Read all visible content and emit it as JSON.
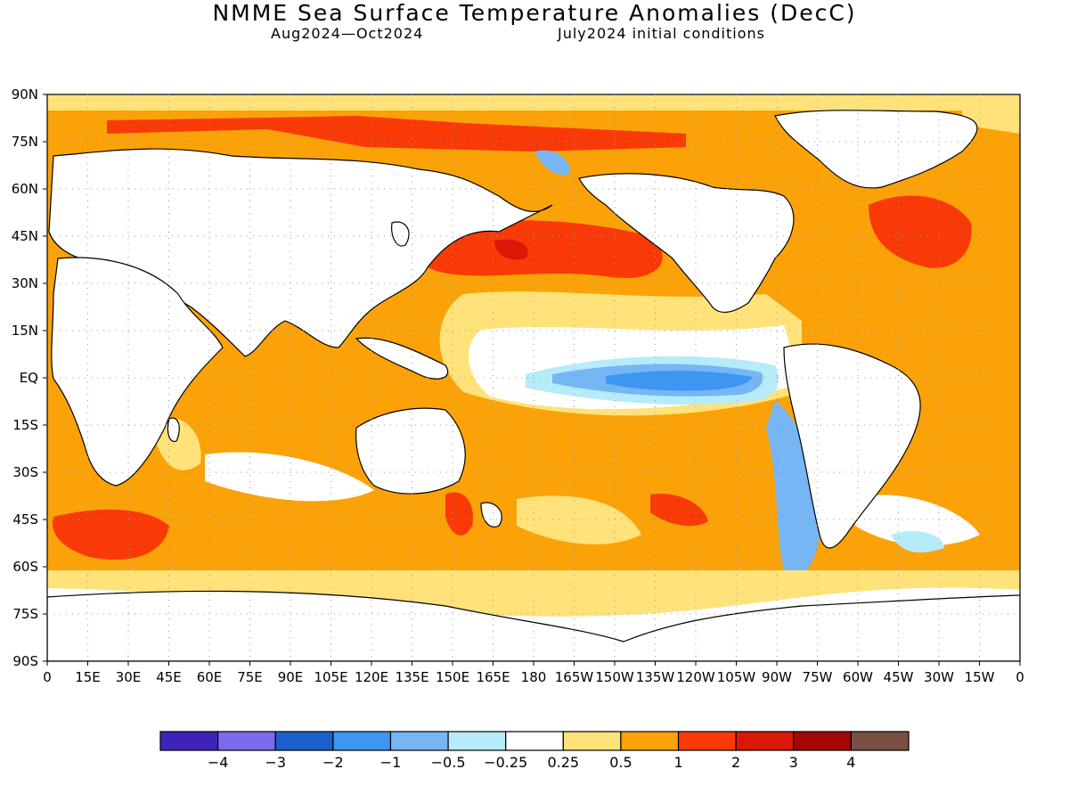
{
  "title": "NMME Sea Surface Temperature Anomalies (DecC)",
  "subtitle_left": "Aug2024—Oct2024",
  "subtitle_right": "July2024 initial conditions",
  "lat_labels": [
    "90N",
    "75N",
    "60N",
    "45N",
    "30N",
    "15N",
    "EQ",
    "15S",
    "30S",
    "45S",
    "60S",
    "75S",
    "90S"
  ],
  "lon_labels": [
    "0",
    "15E",
    "30E",
    "45E",
    "60E",
    "75E",
    "90E",
    "105E",
    "120E",
    "135E",
    "150E",
    "165E",
    "180",
    "165W",
    "150W",
    "135W",
    "120W",
    "105W",
    "90W",
    "75W",
    "60W",
    "45W",
    "30W",
    "15W",
    "0"
  ],
  "colorbar": {
    "colors": [
      "#3f22b8",
      "#7b6bec",
      "#1b5fcd",
      "#3c96f2",
      "#76b6f5",
      "#b6ebf9",
      "#ffffff",
      "#ffe27a",
      "#fba209",
      "#f93a07",
      "#db1708",
      "#a30707",
      "#7a4f44"
    ],
    "labels": [
      "−4",
      "−3",
      "−2",
      "−1",
      "−0.5",
      "−0.25",
      "0.25",
      "0.5",
      "1",
      "2",
      "3",
      "4"
    ]
  },
  "map_colors": {
    "land": "#ffffff",
    "coast": "#000000",
    "grid": "#999999"
  }
}
